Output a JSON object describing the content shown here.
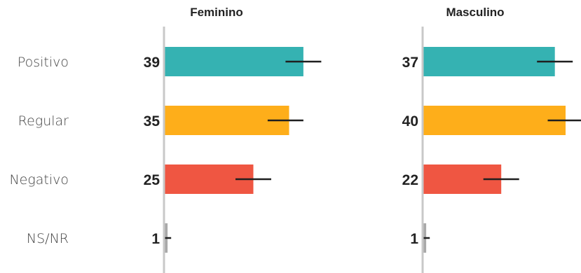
{
  "chart_data": {
    "type": "bar",
    "orientation": "horizontal",
    "categories": [
      "Positivo",
      "Regular",
      "Negativo",
      "NS/NR"
    ],
    "colors": {
      "Positivo": "#35b2b2",
      "Regular": "#feae1a",
      "Negativo": "#ef5642",
      "NS/NR": "#a9a9a9",
      "axis": "#c8c8c8",
      "error_bar": "#1f1f1f"
    },
    "panels": [
      {
        "title": "Feminino",
        "values": [
          39,
          35,
          25,
          1
        ],
        "error_bars": [
          [
            34,
            44
          ],
          [
            29,
            39
          ],
          [
            20,
            30
          ],
          [
            0,
            2
          ]
        ]
      },
      {
        "title": "Masculino",
        "values": [
          37,
          40,
          22,
          1
        ],
        "error_bars": [
          [
            32,
            42
          ],
          [
            35,
            45
          ],
          [
            17,
            27
          ],
          [
            0,
            2
          ]
        ]
      }
    ],
    "xlim": [
      0,
      45
    ],
    "grid": false,
    "legend": "none"
  }
}
